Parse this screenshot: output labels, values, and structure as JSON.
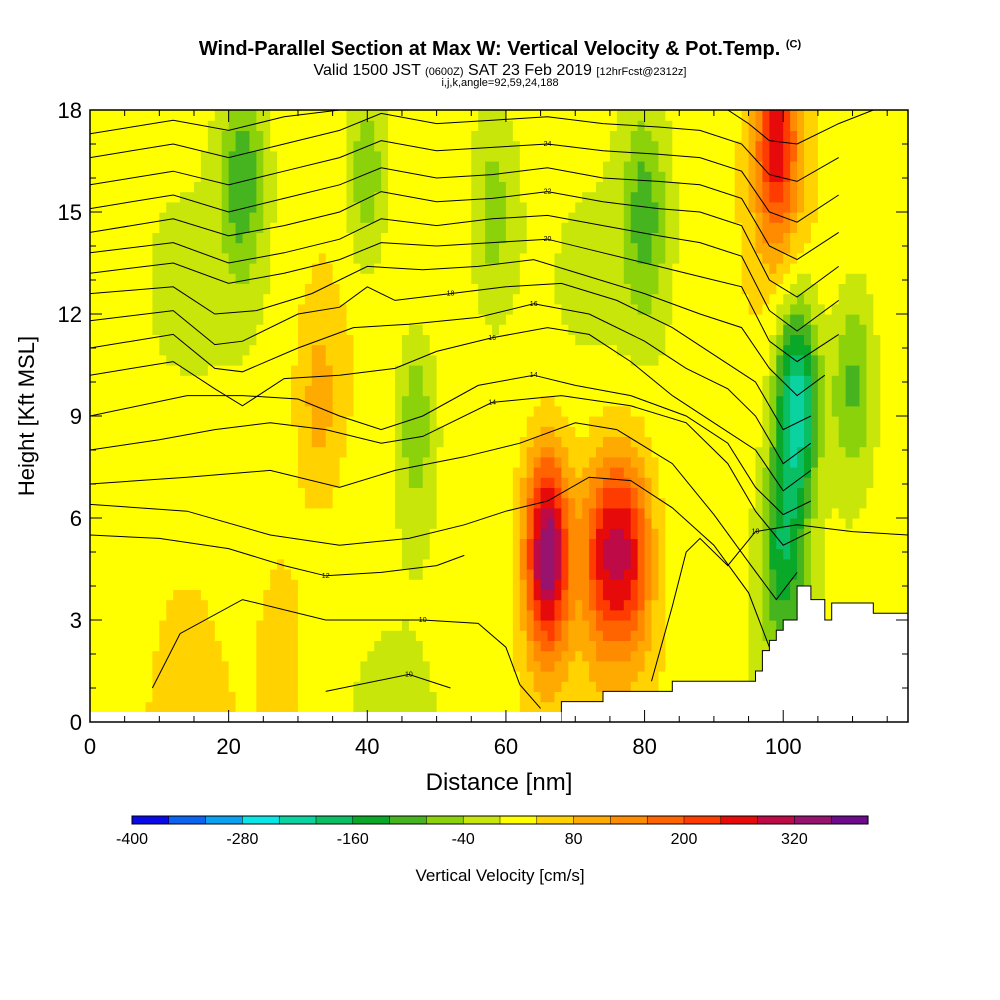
{
  "title": {
    "main": "Wind-Parallel Section at Max W: Vertical Velocity & Pot.Temp.",
    "copyright": "(C)",
    "valid": "Valid 1500 JST",
    "utc": "(0600Z)",
    "date": "SAT 23 Feb 2019",
    "forecast": "[12hrFcst@2312z]",
    "params": "i,j,k,angle=92,59,24,188"
  },
  "colors": {
    "scale": [
      "#0a0ae8",
      "#0a64f0",
      "#0aa0f0",
      "#0ae6e6",
      "#0ad2a0",
      "#0abe64",
      "#0aa828",
      "#46b41e",
      "#8cd20a",
      "#c8e60a",
      "#ffff00",
      "#ffd200",
      "#ffaa00",
      "#ff8c00",
      "#ff6400",
      "#ff3c00",
      "#e60a0a",
      "#be0a46",
      "#96146e",
      "#6e0a8c"
    ],
    "terrain": "#ffffff",
    "contour": "#000000"
  },
  "chart_data": {
    "type": "heatmap",
    "xlabel": "Distance [nm]",
    "ylabel": "Height [Kft MSL]",
    "xlim": [
      0,
      118
    ],
    "ylim": [
      0,
      18
    ],
    "x_ticks": [
      "0",
      "20",
      "40",
      "60",
      "80",
      "100"
    ],
    "y_ticks": [
      "0",
      "3",
      "6",
      "9",
      "12",
      "15",
      "18"
    ],
    "colorbar": {
      "label": "Vertical Velocity [cm/s]",
      "min": -400,
      "max": 400,
      "step": 40,
      "tick_labels": [
        "-400",
        "-280",
        "-160",
        "-40",
        "80",
        "200",
        "320"
      ]
    },
    "vertical_velocity_features": [
      {
        "x": 66,
        "y": 5.0,
        "value": 330
      },
      {
        "x": 74,
        "y": 5.0,
        "value": 200
      },
      {
        "x": 78,
        "y": 5.0,
        "value": 200
      },
      {
        "x": 33,
        "y": 9.5,
        "value": 70
      },
      {
        "x": 22,
        "y": 16,
        "value": -120
      },
      {
        "x": 40,
        "y": 16,
        "value": -100
      },
      {
        "x": 47,
        "y": 9,
        "value": -100
      },
      {
        "x": 58,
        "y": 15,
        "value": -80
      },
      {
        "x": 80,
        "y": 15,
        "value": -110
      },
      {
        "x": 102,
        "y": 9.5,
        "value": -260
      },
      {
        "x": 100,
        "y": 5,
        "value": -160
      },
      {
        "x": 110,
        "y": 10,
        "value": -120
      },
      {
        "x": 99,
        "y": 17,
        "value": 240
      },
      {
        "x": 14,
        "y": 2,
        "value": 10
      },
      {
        "x": 28,
        "y": 2,
        "value": 40
      }
    ],
    "terrain_profile": [
      {
        "x": 68,
        "height": 0.6
      },
      {
        "x": 74,
        "height": 0.9
      },
      {
        "x": 84,
        "height": 1.2
      },
      {
        "x": 96,
        "height": 1.5
      },
      {
        "x": 97,
        "height": 2.1
      },
      {
        "x": 98,
        "height": 2.4
      },
      {
        "x": 99,
        "height": 2.7
      },
      {
        "x": 100,
        "height": 3.0
      },
      {
        "x": 102,
        "height": 4.0
      },
      {
        "x": 104,
        "height": 3.6
      },
      {
        "x": 106,
        "height": 3.0
      },
      {
        "x": 107,
        "height": 3.5
      },
      {
        "x": 113,
        "height": 3.2
      }
    ],
    "theta_contours": [
      {
        "label": "10",
        "pts": [
          [
            9,
            1.0
          ],
          [
            13,
            2.6
          ],
          [
            22,
            3.6
          ],
          [
            34,
            3.0
          ],
          [
            48,
            3.0
          ],
          [
            56,
            2.9
          ],
          [
            60,
            2.2
          ],
          [
            62,
            1.1
          ],
          [
            65,
            0.4
          ]
        ]
      },
      {
        "label": "10",
        "pts": [
          [
            34,
            0.9
          ],
          [
            46,
            1.4
          ],
          [
            52,
            1.0
          ]
        ]
      },
      {
        "label": "10",
        "pts": [
          [
            81,
            1.2
          ],
          [
            84,
            3.4
          ],
          [
            86,
            5.0
          ],
          [
            88,
            5.4
          ],
          [
            92,
            4.6
          ],
          [
            96,
            5.6
          ],
          [
            102,
            5.8
          ],
          [
            106,
            5.7
          ],
          [
            110,
            5.6
          ],
          [
            118,
            5.5
          ]
        ]
      },
      {
        "label": "",
        "pts": [
          [
            0,
            6.4
          ],
          [
            14,
            6.2
          ],
          [
            26,
            5.5
          ],
          [
            36,
            5.2
          ],
          [
            46,
            5.4
          ],
          [
            54,
            5.8
          ],
          [
            60,
            6.2
          ],
          [
            66,
            6.5
          ],
          [
            72,
            7.2
          ],
          [
            78,
            7.1
          ],
          [
            84,
            6.3
          ],
          [
            90,
            5.2
          ],
          [
            95,
            3.8
          ],
          [
            98,
            2.2
          ]
        ]
      },
      {
        "label": "12",
        "pts": [
          [
            0,
            5.5
          ],
          [
            10,
            5.4
          ],
          [
            20,
            5.1
          ],
          [
            28,
            4.6
          ],
          [
            34,
            4.3
          ],
          [
            42,
            4.4
          ],
          [
            50,
            4.6
          ],
          [
            54,
            4.9
          ]
        ]
      },
      {
        "label": "",
        "pts": [
          [
            0,
            7.0
          ],
          [
            14,
            7.2
          ],
          [
            26,
            7.4
          ],
          [
            36,
            6.9
          ],
          [
            44,
            7.4
          ],
          [
            54,
            7.8
          ],
          [
            62,
            8.2
          ],
          [
            70,
            8.8
          ],
          [
            76,
            8.6
          ],
          [
            84,
            7.6
          ],
          [
            90,
            6.1
          ],
          [
            95,
            4.7
          ],
          [
            99,
            3.6
          ],
          [
            102,
            4.4
          ]
        ]
      },
      {
        "label": "14",
        "pts": [
          [
            0,
            8.0
          ],
          [
            10,
            8.3
          ],
          [
            18,
            8.6
          ],
          [
            26,
            8.8
          ],
          [
            34,
            8.6
          ],
          [
            42,
            8.2
          ],
          [
            48,
            8.4
          ],
          [
            58,
            9.4
          ],
          [
            68,
            9.6
          ],
          [
            78,
            9.3
          ],
          [
            86,
            8.8
          ],
          [
            92,
            7.6
          ],
          [
            96,
            6.2
          ],
          [
            100,
            5.2
          ],
          [
            104,
            5.6
          ]
        ]
      },
      {
        "label": "14",
        "pts": [
          [
            0,
            9.0
          ],
          [
            14,
            9.6
          ],
          [
            22,
            9.6
          ],
          [
            30,
            9.5
          ],
          [
            36,
            9.0
          ],
          [
            42,
            8.6
          ],
          [
            48,
            9.0
          ],
          [
            56,
            9.9
          ],
          [
            64,
            10.2
          ],
          [
            70,
            9.9
          ],
          [
            78,
            9.6
          ],
          [
            86,
            9.0
          ],
          [
            92,
            8.2
          ],
          [
            96,
            6.9
          ],
          [
            100,
            6.1
          ],
          [
            104,
            6.5
          ]
        ]
      },
      {
        "label": "16",
        "pts": [
          [
            0,
            10.2
          ],
          [
            12,
            10.6
          ],
          [
            18,
            9.8
          ],
          [
            22,
            9.3
          ],
          [
            28,
            10.1
          ],
          [
            36,
            10.2
          ],
          [
            44,
            10.4
          ],
          [
            50,
            10.9
          ],
          [
            58,
            11.3
          ],
          [
            66,
            11.6
          ],
          [
            72,
            11.4
          ],
          [
            78,
            10.6
          ],
          [
            84,
            9.6
          ],
          [
            90,
            8.8
          ],
          [
            96,
            8.0
          ],
          [
            100,
            6.8
          ],
          [
            104,
            7.4
          ]
        ]
      },
      {
        "label": "16",
        "pts": [
          [
            0,
            11.0
          ],
          [
            12,
            11.4
          ],
          [
            18,
            10.4
          ],
          [
            22,
            10.3
          ],
          [
            30,
            11.0
          ],
          [
            38,
            11.6
          ],
          [
            46,
            11.7
          ],
          [
            56,
            11.9
          ],
          [
            64,
            12.3
          ],
          [
            72,
            12.0
          ],
          [
            80,
            11.2
          ],
          [
            86,
            10.4
          ],
          [
            92,
            9.8
          ],
          [
            96,
            9.0
          ],
          [
            100,
            7.6
          ],
          [
            104,
            8.2
          ]
        ]
      },
      {
        "label": "18",
        "pts": [
          [
            0,
            11.8
          ],
          [
            12,
            12.1
          ],
          [
            18,
            11.1
          ],
          [
            22,
            11.2
          ],
          [
            30,
            12.0
          ],
          [
            36,
            12.2
          ],
          [
            40,
            12.8
          ],
          [
            44,
            12.4
          ],
          [
            52,
            12.6
          ],
          [
            60,
            12.8
          ],
          [
            68,
            12.9
          ],
          [
            76,
            12.4
          ],
          [
            84,
            11.6
          ],
          [
            90,
            10.8
          ],
          [
            96,
            10.0
          ],
          [
            100,
            8.6
          ],
          [
            104,
            9.0
          ]
        ]
      },
      {
        "label": "",
        "pts": [
          [
            0,
            12.6
          ],
          [
            12,
            12.8
          ],
          [
            18,
            12.0
          ],
          [
            24,
            12.1
          ],
          [
            32,
            12.6
          ],
          [
            40,
            13.4
          ],
          [
            48,
            13.3
          ],
          [
            56,
            13.4
          ],
          [
            64,
            13.6
          ],
          [
            72,
            13.1
          ],
          [
            80,
            12.6
          ],
          [
            88,
            12.0
          ],
          [
            94,
            11.6
          ],
          [
            98,
            10.4
          ],
          [
            102,
            9.6
          ],
          [
            106,
            10.2
          ]
        ]
      },
      {
        "label": "20",
        "pts": [
          [
            0,
            13.2
          ],
          [
            12,
            13.5
          ],
          [
            20,
            12.9
          ],
          [
            28,
            13.2
          ],
          [
            36,
            13.6
          ],
          [
            42,
            14.1
          ],
          [
            50,
            14.0
          ],
          [
            58,
            14.1
          ],
          [
            66,
            14.2
          ],
          [
            74,
            13.8
          ],
          [
            82,
            13.4
          ],
          [
            88,
            13.1
          ],
          [
            94,
            12.8
          ],
          [
            98,
            11.2
          ],
          [
            102,
            10.6
          ],
          [
            108,
            11.4
          ]
        ]
      },
      {
        "label": "",
        "pts": [
          [
            0,
            13.8
          ],
          [
            12,
            14.1
          ],
          [
            20,
            13.5
          ],
          [
            28,
            13.8
          ],
          [
            36,
            14.2
          ],
          [
            42,
            14.8
          ],
          [
            50,
            14.6
          ],
          [
            58,
            14.8
          ],
          [
            66,
            14.9
          ],
          [
            74,
            14.6
          ],
          [
            82,
            14.3
          ],
          [
            88,
            14.1
          ],
          [
            94,
            13.7
          ],
          [
            98,
            12.1
          ],
          [
            102,
            11.5
          ],
          [
            108,
            12.4
          ]
        ]
      },
      {
        "label": "22",
        "pts": [
          [
            0,
            14.4
          ],
          [
            12,
            14.8
          ],
          [
            20,
            14.3
          ],
          [
            28,
            14.6
          ],
          [
            36,
            15.0
          ],
          [
            42,
            15.6
          ],
          [
            50,
            15.3
          ],
          [
            58,
            15.4
          ],
          [
            66,
            15.6
          ],
          [
            74,
            15.3
          ],
          [
            82,
            15.1
          ],
          [
            88,
            15.0
          ],
          [
            94,
            14.6
          ],
          [
            98,
            13.0
          ],
          [
            102,
            12.5
          ],
          [
            108,
            13.4
          ]
        ]
      },
      {
        "label": "",
        "pts": [
          [
            0,
            15.1
          ],
          [
            12,
            15.5
          ],
          [
            20,
            15.0
          ],
          [
            28,
            15.4
          ],
          [
            36,
            15.8
          ],
          [
            42,
            16.3
          ],
          [
            50,
            16.0
          ],
          [
            58,
            16.1
          ],
          [
            66,
            16.3
          ],
          [
            74,
            16.0
          ],
          [
            82,
            15.9
          ],
          [
            88,
            15.8
          ],
          [
            94,
            15.4
          ],
          [
            98,
            14.0
          ],
          [
            102,
            13.6
          ],
          [
            108,
            14.4
          ]
        ]
      },
      {
        "label": "24",
        "pts": [
          [
            0,
            15.8
          ],
          [
            12,
            16.2
          ],
          [
            20,
            15.8
          ],
          [
            28,
            16.2
          ],
          [
            36,
            16.6
          ],
          [
            42,
            17.1
          ],
          [
            50,
            16.8
          ],
          [
            58,
            16.9
          ],
          [
            66,
            17.0
          ],
          [
            74,
            16.8
          ],
          [
            82,
            16.7
          ],
          [
            88,
            16.6
          ],
          [
            94,
            16.2
          ],
          [
            98,
            15.0
          ],
          [
            102,
            14.7
          ],
          [
            108,
            15.5
          ]
        ]
      },
      {
        "label": "",
        "pts": [
          [
            0,
            16.6
          ],
          [
            12,
            17.0
          ],
          [
            20,
            16.6
          ],
          [
            28,
            17.0
          ],
          [
            36,
            17.4
          ],
          [
            42,
            17.9
          ],
          [
            50,
            17.6
          ],
          [
            58,
            17.7
          ],
          [
            66,
            17.8
          ],
          [
            74,
            17.6
          ],
          [
            82,
            17.5
          ],
          [
            88,
            17.4
          ],
          [
            94,
            17.0
          ],
          [
            98,
            16.1
          ],
          [
            102,
            15.9
          ],
          [
            108,
            16.6
          ]
        ]
      },
      {
        "label": "",
        "pts": [
          [
            0,
            17.3
          ],
          [
            12,
            17.7
          ],
          [
            20,
            17.4
          ],
          [
            28,
            17.8
          ],
          [
            36,
            18.0
          ]
        ]
      },
      {
        "label": "",
        "pts": [
          [
            92,
            18.0
          ],
          [
            95,
            17.6
          ],
          [
            98,
            17.1
          ],
          [
            102,
            17.0
          ],
          [
            108,
            17.6
          ],
          [
            113,
            18.0
          ]
        ]
      }
    ]
  }
}
